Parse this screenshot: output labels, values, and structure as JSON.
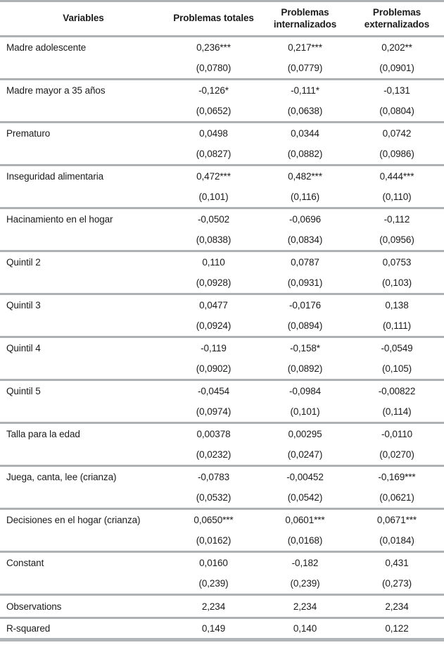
{
  "table": {
    "columns": [
      "Variables",
      "Problemas totales",
      "Problemas internalizados",
      "Problemas externalizados"
    ],
    "line_color": "#aeb1b3",
    "text_color": "#1b1b1b",
    "rows": [
      {
        "variable": "Madre adolescente",
        "coefficients": [
          "0,236***",
          "0,217***",
          "0,202**"
        ],
        "std_errors": [
          "(0,0780)",
          "(0,0779)",
          "(0,0901)"
        ]
      },
      {
        "variable": "Madre mayor a 35 años",
        "coefficients": [
          "-0,126*",
          "-0,111*",
          "-0,131"
        ],
        "std_errors": [
          "(0,0652)",
          "(0,0638)",
          "(0,0804)"
        ]
      },
      {
        "variable": "Prematuro",
        "coefficients": [
          "0,0498",
          "0,0344",
          "0,0742"
        ],
        "std_errors": [
          "(0,0827)",
          "(0,0882)",
          "(0,0986)"
        ]
      },
      {
        "variable": "Inseguridad alimentaria",
        "coefficients": [
          "0,472***",
          "0,482***",
          "0,444***"
        ],
        "std_errors": [
          "(0,101)",
          "(0,116)",
          "(0,110)"
        ]
      },
      {
        "variable": "Hacinamiento en el hogar",
        "coefficients": [
          "-0,0502",
          "-0,0696",
          "-0,112"
        ],
        "std_errors": [
          "(0,0838)",
          "(0,0834)",
          "(0,0956)"
        ]
      },
      {
        "variable": "Quintil 2",
        "coefficients": [
          "0,110",
          "0,0787",
          "0,0753"
        ],
        "std_errors": [
          "(0,0928)",
          "(0,0931)",
          "(0,103)"
        ]
      },
      {
        "variable": "Quintil 3",
        "coefficients": [
          "0,0477",
          "-0,0176",
          "0,138"
        ],
        "std_errors": [
          "(0,0924)",
          "(0,0894)",
          "(0,111)"
        ]
      },
      {
        "variable": "Quintil 4",
        "coefficients": [
          "-0,119",
          "-0,158*",
          "-0,0549"
        ],
        "std_errors": [
          "(0,0902)",
          "(0,0892)",
          "(0,105)"
        ]
      },
      {
        "variable": "Quintil 5",
        "coefficients": [
          "-0,0454",
          "-0,0984",
          "-0,00822"
        ],
        "std_errors": [
          "(0,0974)",
          "(0,101)",
          "(0,114)"
        ]
      },
      {
        "variable": "Talla para la edad",
        "coefficients": [
          "0,00378",
          "0,00295",
          "-0,0110"
        ],
        "std_errors": [
          "(0,0232)",
          "(0,0247)",
          "(0,0270)"
        ]
      },
      {
        "variable": "Juega, canta, lee (crianza)",
        "coefficients": [
          "-0,0783",
          "-0,00452",
          "-0,169***"
        ],
        "std_errors": [
          "(0,0532)",
          "(0,0542)",
          "(0,0621)"
        ]
      },
      {
        "variable": "Decisiones en el hogar (crianza)",
        "coefficients": [
          "0,0650***",
          "0,0601***",
          "0,0671***"
        ],
        "std_errors": [
          "(0,0162)",
          "(0,0168)",
          "(0,0184)"
        ]
      },
      {
        "variable": "Constant",
        "coefficients": [
          "0,0160",
          "-0,182",
          "0,431"
        ],
        "std_errors": [
          "(0,239)",
          "(0,239)",
          "(0,273)"
        ]
      }
    ],
    "summary_rows": [
      {
        "label": "Observations",
        "values": [
          "2,234",
          "2,234",
          "2,234"
        ]
      },
      {
        "label": "R-squared",
        "values": [
          "0,149",
          "0,140",
          "0,122"
        ]
      }
    ]
  }
}
